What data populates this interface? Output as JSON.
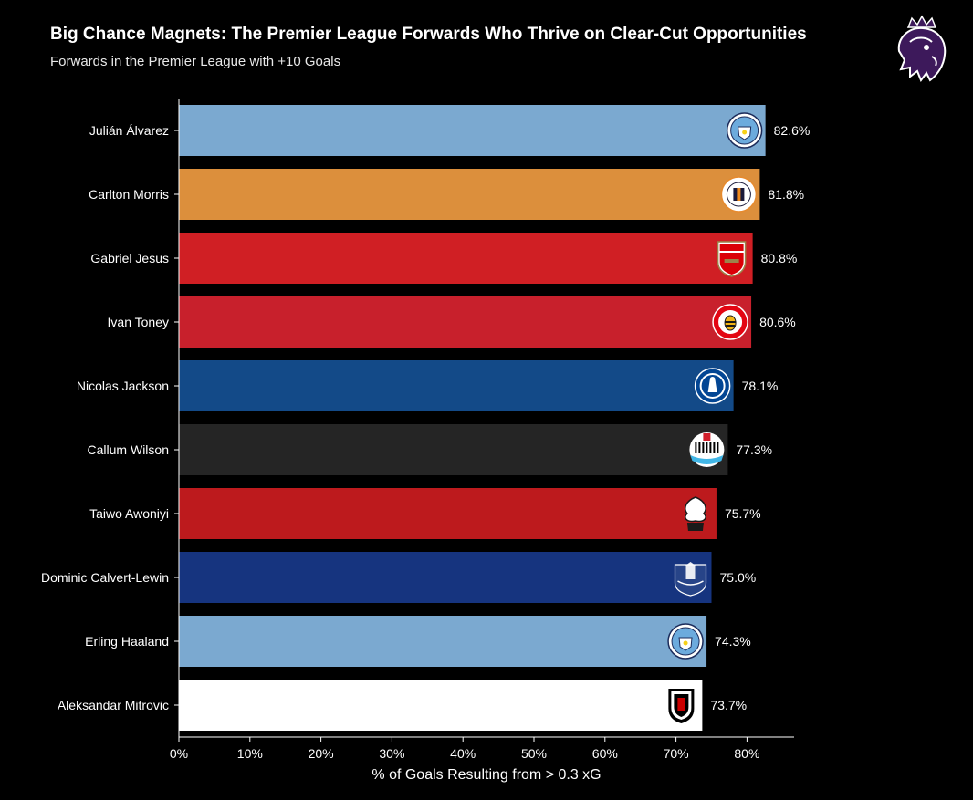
{
  "header": {
    "title": "Big Chance Magnets: The Premier League Forwards Who Thrive on Clear-Cut Opportunities",
    "subtitle": "Forwards in the Premier League with +10 Goals",
    "logo_icon": "premier-league-lion-icon",
    "logo_color": "#3d195b"
  },
  "chart_data": {
    "type": "bar",
    "orientation": "horizontal",
    "xlabel": "% of Goals Resulting from > 0.3 xG",
    "xlim": [
      0,
      0.87
    ],
    "xticks": [
      0,
      0.1,
      0.2,
      0.3,
      0.4,
      0.5,
      0.6,
      0.7,
      0.8
    ],
    "xtick_labels": [
      "0%",
      "10%",
      "20%",
      "30%",
      "40%",
      "50%",
      "60%",
      "70%",
      "80%"
    ],
    "grid": false,
    "categories": [
      "Julián Álvarez",
      "Carlton Morris",
      "Gabriel Jesus",
      "Ivan Toney",
      "Nicolas Jackson",
      "Callum Wilson",
      "Taiwo Awoniyi",
      "Dominic Calvert-Lewin",
      "Erling Haaland",
      "Aleksandar Mitrovic"
    ],
    "values": [
      0.826,
      0.818,
      0.808,
      0.806,
      0.781,
      0.773,
      0.757,
      0.75,
      0.743,
      0.737
    ],
    "value_labels": [
      "82.6%",
      "81.8%",
      "80.8%",
      "80.6%",
      "78.1%",
      "77.3%",
      "75.7%",
      "75.0%",
      "74.3%",
      "73.7%"
    ],
    "bar_colors": [
      "#7ba9d0",
      "#dc8f3c",
      "#d01f24",
      "#c8202c",
      "#134a88",
      "#252525",
      "#bd1a1d",
      "#16347f",
      "#7ba9d0",
      "#ffffff"
    ],
    "club_icons": [
      "manchester-city-crest-icon",
      "luton-town-crest-icon",
      "arsenal-crest-icon",
      "brentford-crest-icon",
      "chelsea-crest-icon",
      "newcastle-united-crest-icon",
      "nottingham-forest-crest-icon",
      "everton-crest-icon",
      "manchester-city-crest-icon",
      "fulham-crest-icon"
    ]
  }
}
